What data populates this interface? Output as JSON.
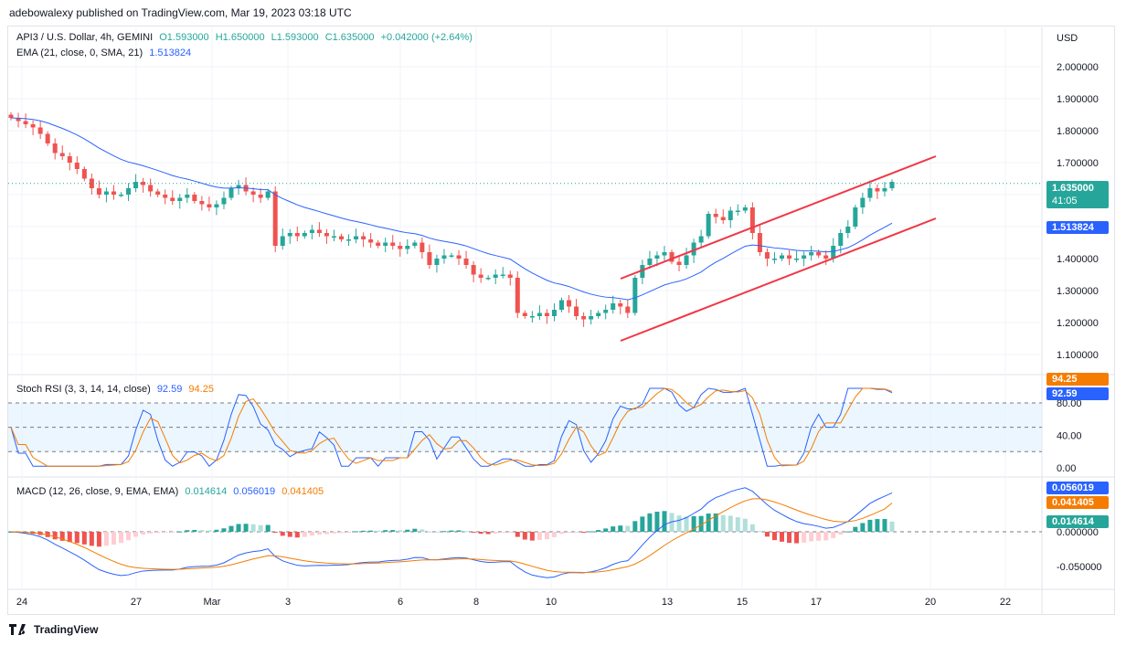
{
  "header": {
    "published": "adebowalexy published on TradingView.com, Mar 19, 2023 03:18 UTC"
  },
  "main_legend": {
    "symbol": "API3 / U.S. Dollar, 4h, GEMINI",
    "open": "O1.593000",
    "high": "H1.650000",
    "low": "L1.593000",
    "close": "C1.635000",
    "change": "+0.042000 (+2.64%)",
    "ema_label": "EMA (21, close, 0, SMA, 21)",
    "ema_value": "1.513824"
  },
  "price_axis": {
    "currency": "USD",
    "ticks": [
      "2.000000",
      "1.900000",
      "1.800000",
      "1.700000",
      "1.600000",
      "1.500000",
      "1.400000",
      "1.300000",
      "1.200000",
      "1.100000"
    ],
    "last_price": "1.635000",
    "countdown": "41:05",
    "ema_badge": "1.513824"
  },
  "stoch_legend": {
    "label": "Stoch RSI (3, 3, 14, 14, close)",
    "k": "92.59",
    "d": "94.25"
  },
  "stoch_axis": {
    "ticks": [
      "80.00",
      "40.00",
      "0.00"
    ],
    "k_badge": "92.59",
    "d_badge": "94.25"
  },
  "macd_legend": {
    "label": "MACD (12, 26, close, 9, EMA, EMA)",
    "hist": "0.014614",
    "macd": "0.056019",
    "signal": "0.041405"
  },
  "macd_axis": {
    "ticks": [
      "0.000000",
      "-0.050000"
    ],
    "macd_badge": "0.056019",
    "signal_badge": "0.041405",
    "hist_badge": "0.014614"
  },
  "time_axis": {
    "labels": [
      "24",
      "27",
      "Mar",
      "3",
      "6",
      "8",
      "10",
      "13",
      "15",
      "17",
      "20",
      "22"
    ]
  },
  "footer": {
    "brand": "TradingView"
  },
  "colors": {
    "up": "#26a69a",
    "down": "#ef5350",
    "ema": "#2962ff",
    "channel": "#f23645",
    "signal": "#f57c00",
    "hist_up": "#26a69a",
    "hist_up_light": "#b2dfdb",
    "hist_down": "#ef5350",
    "hist_down_light": "#ffcdd2"
  },
  "chart_data": {
    "type": "candlestick",
    "price_range": [
      1.05,
      2.05
    ],
    "close_series": [
      1.84,
      1.83,
      1.82,
      1.81,
      1.79,
      1.76,
      1.73,
      1.72,
      1.7,
      1.68,
      1.65,
      1.62,
      1.6,
      1.61,
      1.6,
      1.6,
      1.62,
      1.64,
      1.63,
      1.61,
      1.6,
      1.59,
      1.58,
      1.59,
      1.6,
      1.58,
      1.57,
      1.56,
      1.57,
      1.59,
      1.62,
      1.63,
      1.61,
      1.6,
      1.59,
      1.61,
      1.44,
      1.47,
      1.48,
      1.47,
      1.48,
      1.49,
      1.48,
      1.47,
      1.47,
      1.46,
      1.46,
      1.47,
      1.46,
      1.45,
      1.44,
      1.45,
      1.44,
      1.43,
      1.44,
      1.45,
      1.42,
      1.38,
      1.4,
      1.41,
      1.41,
      1.4,
      1.38,
      1.35,
      1.34,
      1.34,
      1.35,
      1.35,
      1.34,
      1.23,
      1.22,
      1.22,
      1.23,
      1.22,
      1.24,
      1.27,
      1.25,
      1.22,
      1.21,
      1.22,
      1.23,
      1.24,
      1.26,
      1.25,
      1.23,
      1.34,
      1.38,
      1.4,
      1.41,
      1.42,
      1.39,
      1.38,
      1.41,
      1.45,
      1.47,
      1.54,
      1.53,
      1.52,
      1.55,
      1.55,
      1.56,
      1.48,
      1.42,
      1.4,
      1.4,
      1.41,
      1.4,
      1.4,
      1.41,
      1.42,
      1.41,
      1.4,
      1.44,
      1.48,
      1.5,
      1.56,
      1.59,
      1.62,
      1.61,
      1.62,
      1.64
    ],
    "ema": {
      "name": "EMA (21, close, 0, SMA, 21)",
      "last": 1.513824
    },
    "stoch_rsi": {
      "k_last": 92.59,
      "d_last": 94.25,
      "bands": [
        20,
        50,
        80
      ],
      "range": [
        0,
        100
      ]
    },
    "macd": {
      "macd_last": 0.056019,
      "signal_last": 0.041405,
      "hist_last": 0.014614
    }
  }
}
